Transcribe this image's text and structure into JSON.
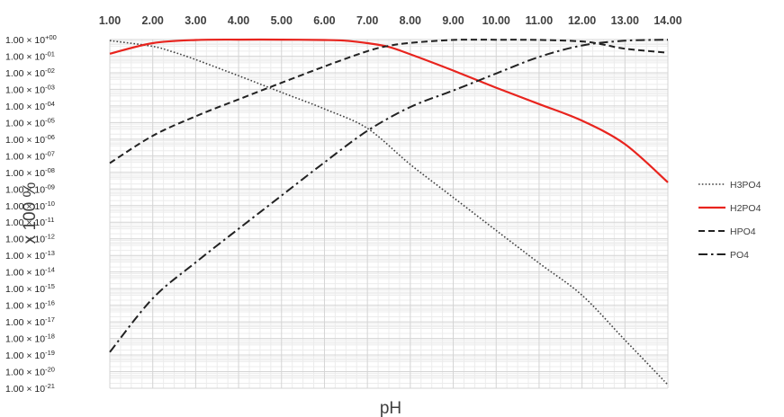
{
  "chart_data": {
    "type": "line",
    "xlabel": "pH",
    "ylabel": "x 100 %",
    "xlim": [
      1,
      14
    ],
    "ylim_log10": [
      -21,
      0
    ],
    "y_scale": "log",
    "x_ticks": [
      "1.00",
      "2.00",
      "3.00",
      "4.00",
      "5.00",
      "6.00",
      "7.00",
      "8.00",
      "9.00",
      "10.00",
      "11.00",
      "12.00",
      "13.00",
      "14.00"
    ],
    "y_tick_mantissa": "1.00 × 10",
    "y_tick_exponents": [
      "+00",
      "-01",
      "-02",
      "-03",
      "-04",
      "-05",
      "-06",
      "-07",
      "-08",
      "-09",
      "-10",
      "-11",
      "-12",
      "-13",
      "-14",
      "-15",
      "-16",
      "-17",
      "-18",
      "-19",
      "-20",
      "-21"
    ],
    "x_axis_position": "top",
    "grid": true,
    "legend_position": "right",
    "series": [
      {
        "name": "H3PO4",
        "color": "#404040",
        "style": "dotted",
        "x": [
          1,
          2,
          2.5,
          3,
          4,
          5,
          6,
          7,
          8,
          9,
          10,
          11,
          12,
          13,
          14
        ],
        "y": [
          0.86,
          0.39,
          0.17,
          0.062,
          0.0066,
          0.00066,
          6.6e-05,
          4.5e-06,
          3e-08,
          3.1e-10,
          3.2e-12,
          3.4e-14,
          4e-16,
          8e-19,
          1.6e-21
        ]
      },
      {
        "name": "H2PO4",
        "color": "#e8241e",
        "style": "solid",
        "x": [
          1,
          2,
          3,
          4,
          5,
          6,
          6.5,
          7,
          7.5,
          8,
          9,
          10,
          11,
          12,
          13,
          14
        ],
        "y": [
          0.14,
          0.61,
          0.94,
          0.99,
          0.99,
          0.94,
          0.85,
          0.61,
          0.36,
          0.13,
          0.0135,
          0.00126,
          0.00013,
          1.3e-05,
          5e-07,
          2.5e-09
        ]
      },
      {
        "name": "HPO4",
        "color": "#222222",
        "style": "dashed",
        "x": [
          1,
          2,
          3,
          4,
          5,
          6,
          7,
          7.5,
          8,
          9,
          10,
          11,
          12,
          12.5,
          13,
          14
        ],
        "y": [
          3.6e-08,
          1.6e-06,
          2.4e-05,
          0.00025,
          0.0025,
          0.024,
          0.2,
          0.42,
          0.63,
          0.95,
          0.98,
          0.95,
          0.77,
          0.5,
          0.28,
          0.16
        ]
      },
      {
        "name": "PO4",
        "color": "#222222",
        "style": "dashdot",
        "x": [
          1,
          2,
          3,
          4,
          5,
          6,
          7,
          8,
          9,
          10,
          11,
          12,
          13,
          14
        ],
        "y": [
          1.5e-19,
          2.6e-16,
          3.8e-14,
          4e-12,
          4e-10,
          4e-08,
          3.2e-06,
          8.6e-05,
          0.00085,
          0.009,
          0.09,
          0.44,
          0.85,
          0.97
        ]
      }
    ]
  }
}
